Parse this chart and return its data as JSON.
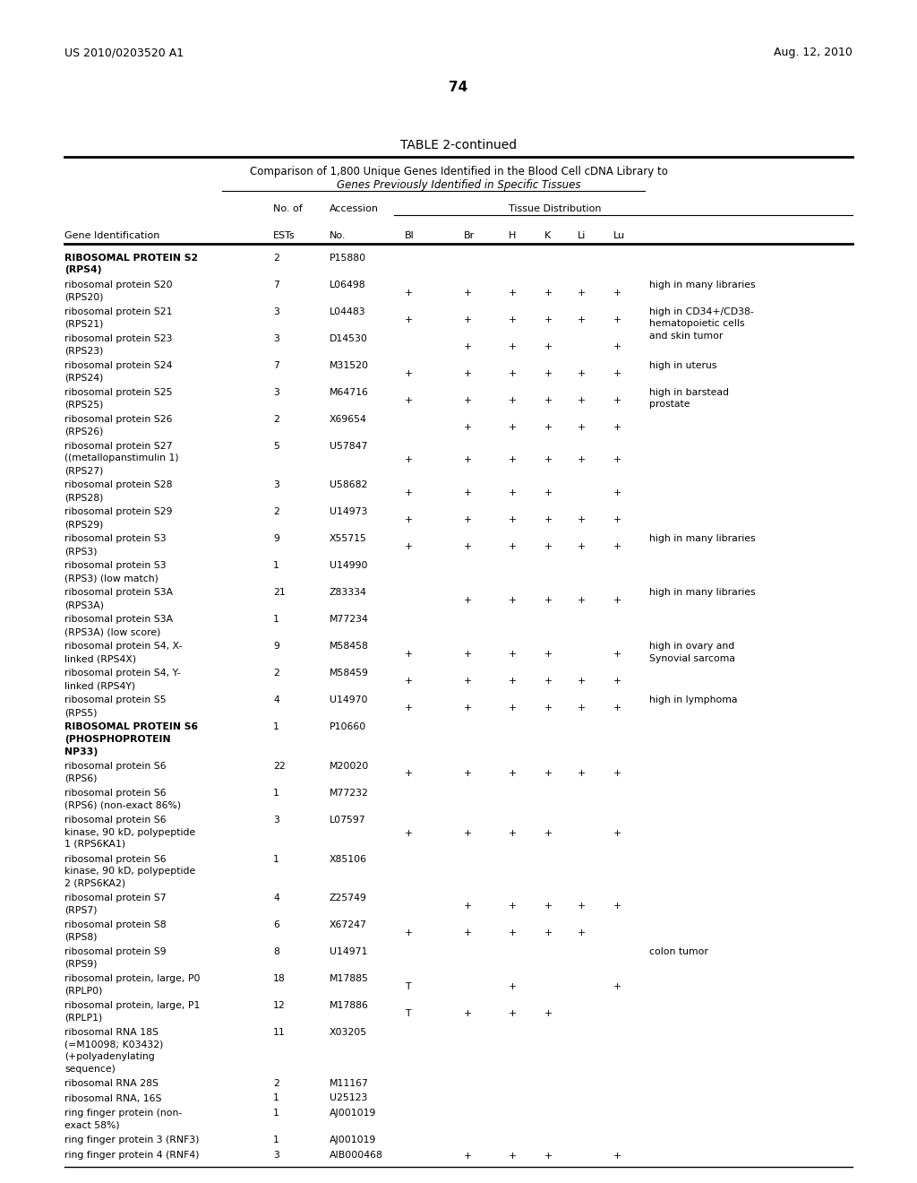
{
  "patent_number": "US 2010/0203520 A1",
  "patent_date": "Aug. 12, 2010",
  "page_number": "74",
  "table_title": "TABLE 2-continued",
  "table_subtitle1": "Comparison of 1,800 Unique Genes Identified in the Blood Cell cDNA Library to",
  "table_subtitle2": "Genes Previously Identified in Specific Tissues",
  "rows": [
    {
      "gene": "RIBOSOMAL PROTEIN S2\n(RPS4)",
      "ests": "2",
      "acc": "P15880",
      "Bl": "",
      "Br": "",
      "H": "",
      "K": "",
      "Li": "",
      "Lu": "",
      "notes": "",
      "bold": true
    },
    {
      "gene": "ribosomal protein S20\n(RPS20)",
      "ests": "7",
      "acc": "L06498",
      "Bl": "+",
      "Br": "+",
      "H": "+",
      "K": "+",
      "Li": "+",
      "Lu": "+",
      "notes": "high in many libraries",
      "bold": false
    },
    {
      "gene": "ribosomal protein S21\n(RPS21)",
      "ests": "3",
      "acc": "L04483",
      "Bl": "+",
      "Br": "+",
      "H": "+",
      "K": "+",
      "Li": "+",
      "Lu": "+",
      "notes": "high in CD34+/CD38-\nhematopoietic cells\nand skin tumor",
      "bold": false
    },
    {
      "gene": "ribosomal protein S23\n(RPS23)",
      "ests": "3",
      "acc": "D14530",
      "Bl": "",
      "Br": "+",
      "H": "+",
      "K": "+",
      "Li": "",
      "Lu": "+",
      "notes": "",
      "bold": false
    },
    {
      "gene": "ribosomal protein S24\n(RPS24)",
      "ests": "7",
      "acc": "M31520",
      "Bl": "+",
      "Br": "+",
      "H": "+",
      "K": "+",
      "Li": "+",
      "Lu": "+",
      "notes": "high in uterus",
      "bold": false
    },
    {
      "gene": "ribosomal protein S25\n(RPS25)",
      "ests": "3",
      "acc": "M64716",
      "Bl": "+",
      "Br": "+",
      "H": "+",
      "K": "+",
      "Li": "+",
      "Lu": "+",
      "notes": "high in barstead\nprostate",
      "bold": false
    },
    {
      "gene": "ribosomal protein S26\n(RPS26)",
      "ests": "2",
      "acc": "X69654",
      "Bl": "",
      "Br": "+",
      "H": "+",
      "K": "+",
      "Li": "+",
      "Lu": "+",
      "notes": "",
      "bold": false
    },
    {
      "gene": "ribosomal protein S27\n((metallopanstimulin 1)\n(RPS27)",
      "ests": "5",
      "acc": "U57847",
      "Bl": "+",
      "Br": "+",
      "H": "+",
      "K": "+",
      "Li": "+",
      "Lu": "+",
      "notes": "",
      "bold": false
    },
    {
      "gene": "ribosomal protein S28\n(RPS28)",
      "ests": "3",
      "acc": "U58682",
      "Bl": "+",
      "Br": "+",
      "H": "+",
      "K": "+",
      "Li": "",
      "Lu": "+",
      "notes": "",
      "bold": false
    },
    {
      "gene": "ribosomal protein S29\n(RPS29)",
      "ests": "2",
      "acc": "U14973",
      "Bl": "+",
      "Br": "+",
      "H": "+",
      "K": "+",
      "Li": "+",
      "Lu": "+",
      "notes": "",
      "bold": false
    },
    {
      "gene": "ribosomal protein S3\n(RPS3)",
      "ests": "9",
      "acc": "X55715",
      "Bl": "+",
      "Br": "+",
      "H": "+",
      "K": "+",
      "Li": "+",
      "Lu": "+",
      "notes": "high in many libraries",
      "bold": false
    },
    {
      "gene": "ribosomal protein S3\n(RPS3) (low match)",
      "ests": "1",
      "acc": "U14990",
      "Bl": "",
      "Br": "",
      "H": "",
      "K": "",
      "Li": "",
      "Lu": "",
      "notes": "",
      "bold": false
    },
    {
      "gene": "ribosomal protein S3A\n(RPS3A)",
      "ests": "21",
      "acc": "Z83334",
      "Bl": "",
      "Br": "+",
      "H": "+",
      "K": "+",
      "Li": "+",
      "Lu": "+",
      "notes": "high in many libraries",
      "bold": false
    },
    {
      "gene": "ribosomal protein S3A\n(RPS3A) (low score)",
      "ests": "1",
      "acc": "M77234",
      "Bl": "",
      "Br": "",
      "H": "",
      "K": "",
      "Li": "",
      "Lu": "",
      "notes": "",
      "bold": false
    },
    {
      "gene": "ribosomal protein S4, X-\nlinked (RPS4X)",
      "ests": "9",
      "acc": "M58458",
      "Bl": "+",
      "Br": "+",
      "H": "+",
      "K": "+",
      "Li": "",
      "Lu": "+",
      "notes": "high in ovary and\nSynovial sarcoma",
      "bold": false
    },
    {
      "gene": "ribosomal protein S4, Y-\nlinked (RPS4Y)",
      "ests": "2",
      "acc": "M58459",
      "Bl": "+",
      "Br": "+",
      "H": "+",
      "K": "+",
      "Li": "+",
      "Lu": "+",
      "notes": "",
      "bold": false
    },
    {
      "gene": "ribosomal protein S5\n(RPS5)",
      "ests": "4",
      "acc": "U14970",
      "Bl": "+",
      "Br": "+",
      "H": "+",
      "K": "+",
      "Li": "+",
      "Lu": "+",
      "notes": "high in lymphoma",
      "bold": false
    },
    {
      "gene": "RIBOSOMAL PROTEIN S6\n(PHOSPHOPROTEIN\nNP33)",
      "ests": "1",
      "acc": "P10660",
      "Bl": "",
      "Br": "",
      "H": "",
      "K": "",
      "Li": "",
      "Lu": "",
      "notes": "",
      "bold": true
    },
    {
      "gene": "ribosomal protein S6\n(RPS6)",
      "ests": "22",
      "acc": "M20020",
      "Bl": "+",
      "Br": "+",
      "H": "+",
      "K": "+",
      "Li": "+",
      "Lu": "+",
      "notes": "",
      "bold": false
    },
    {
      "gene": "ribosomal protein S6\n(RPS6) (non-exact 86%)",
      "ests": "1",
      "acc": "M77232",
      "Bl": "",
      "Br": "",
      "H": "",
      "K": "",
      "Li": "",
      "Lu": "",
      "notes": "",
      "bold": false
    },
    {
      "gene": "ribosomal protein S6\nkinase, 90 kD, polypeptide\n1 (RPS6KA1)",
      "ests": "3",
      "acc": "L07597",
      "Bl": "+",
      "Br": "+",
      "H": "+",
      "K": "+",
      "Li": "",
      "Lu": "+",
      "notes": "",
      "bold": false
    },
    {
      "gene": "ribosomal protein S6\nkinase, 90 kD, polypeptide\n2 (RPS6KA2)",
      "ests": "1",
      "acc": "X85106",
      "Bl": "",
      "Br": "",
      "H": "",
      "K": "",
      "Li": "",
      "Lu": "",
      "notes": "",
      "bold": false
    },
    {
      "gene": "ribosomal protein S7\n(RPS7)",
      "ests": "4",
      "acc": "Z25749",
      "Bl": "",
      "Br": "+",
      "H": "+",
      "K": "+",
      "Li": "+",
      "Lu": "+",
      "notes": "",
      "bold": false
    },
    {
      "gene": "ribosomal protein S8\n(RPS8)",
      "ests": "6",
      "acc": "X67247",
      "Bl": "+",
      "Br": "+",
      "H": "+",
      "K": "+",
      "Li": "+",
      "Lu": "",
      "notes": "",
      "bold": false
    },
    {
      "gene": "ribosomal protein S9\n(RPS9)",
      "ests": "8",
      "acc": "U14971",
      "Bl": "",
      "Br": "",
      "H": "",
      "K": "",
      "Li": "",
      "Lu": "",
      "notes": "colon tumor",
      "bold": false
    },
    {
      "gene": "ribosomal protein, large, P0\n(RPLP0)",
      "ests": "18",
      "acc": "M17885",
      "Bl": "T",
      "Br": "",
      "H": "+",
      "K": "",
      "Li": "",
      "Lu": "+",
      "notes": "",
      "bold": false
    },
    {
      "gene": "ribosomal protein, large, P1\n(RPLP1)",
      "ests": "12",
      "acc": "M17886",
      "Bl": "T",
      "Br": "+",
      "H": "+",
      "K": "+",
      "Li": "",
      "Lu": "",
      "notes": "",
      "bold": false
    },
    {
      "gene": "ribosomal RNA 18S\n(=M10098; K03432)\n(+polyadenylating\nsequence)",
      "ests": "11",
      "acc": "X03205",
      "Bl": "",
      "Br": "",
      "H": "",
      "K": "",
      "Li": "",
      "Lu": "",
      "notes": "",
      "bold": false
    },
    {
      "gene": "ribosomal RNA 28S",
      "ests": "2",
      "acc": "M11167",
      "Bl": "",
      "Br": "",
      "H": "",
      "K": "",
      "Li": "",
      "Lu": "",
      "notes": "",
      "bold": false
    },
    {
      "gene": "ribosomal RNA, 16S",
      "ests": "1",
      "acc": "U25123",
      "Bl": "",
      "Br": "",
      "H": "",
      "K": "",
      "Li": "",
      "Lu": "",
      "notes": "",
      "bold": false
    },
    {
      "gene": "ring finger protein (non-\nexact 58%)",
      "ests": "1",
      "acc": "AJ001019",
      "Bl": "",
      "Br": "",
      "H": "",
      "K": "",
      "Li": "",
      "Lu": "",
      "notes": "",
      "bold": false
    },
    {
      "gene": "ring finger protein 3 (RNF3)",
      "ests": "1",
      "acc": "AJ001019",
      "Bl": "",
      "Br": "",
      "H": "",
      "K": "",
      "Li": "",
      "Lu": "",
      "notes": "",
      "bold": false
    },
    {
      "gene": "ring finger protein 4 (RNF4)",
      "ests": "3",
      "acc": "AIB000468",
      "Bl": "",
      "Br": "+",
      "H": "+",
      "K": "+",
      "Li": "",
      "Lu": "+",
      "notes": "",
      "bold": false
    }
  ],
  "bg_color": "#ffffff",
  "text_color": "#000000"
}
